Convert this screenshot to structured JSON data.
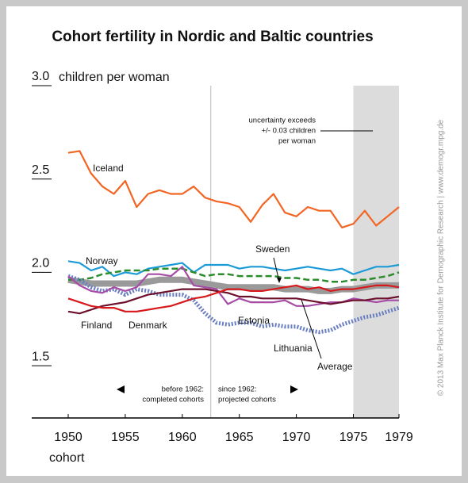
{
  "chart_data": {
    "type": "line",
    "title": "Cohort fertility in Nordic and Baltic countries",
    "y_label": "children per woman",
    "x_label": "cohort",
    "credit": "© 2013 Max Planck Institute for Demographic Research | www.demogr.mpg.de",
    "uncertainty_note": [
      "uncertainty exceeds",
      "+/- 0.03 children",
      "per woman"
    ],
    "before_note": [
      "before 1962:",
      "completed cohorts"
    ],
    "since_note": [
      "since 1962:",
      "projected cohorts"
    ],
    "xlim": [
      1946.8,
      1979
    ],
    "ylim": [
      1.22,
      3.0
    ],
    "xticks": [
      1950,
      1955,
      1960,
      1965,
      1970,
      1975,
      1979
    ],
    "yticks": [
      {
        "value": 1.5,
        "label": "1.5"
      },
      {
        "value": 2.0,
        "label": "2.0"
      },
      {
        "value": 2.5,
        "label": "2.5"
      },
      {
        "value": 3.0,
        "label": "3.0"
      }
    ],
    "shaded_range": [
      1975,
      1979
    ],
    "divider": 1962.5,
    "x": [
      1950,
      1951,
      1952,
      1953,
      1954,
      1955,
      1956,
      1957,
      1958,
      1959,
      1960,
      1961,
      1962,
      1963,
      1964,
      1965,
      1966,
      1967,
      1968,
      1969,
      1970,
      1971,
      1972,
      1973,
      1974,
      1975,
      1976,
      1977,
      1978,
      1979
    ],
    "series": [
      {
        "name": "Average",
        "color": "#9a9a9a",
        "style": "thick",
        "values": [
          1.96,
          1.95,
          1.94,
          1.94,
          1.94,
          1.94,
          1.94,
          1.95,
          1.96,
          1.96,
          1.96,
          1.95,
          1.94,
          1.93,
          1.92,
          1.92,
          1.92,
          1.92,
          1.92,
          1.91,
          1.91,
          1.91,
          1.9,
          1.9,
          1.91,
          1.91,
          1.92,
          1.93,
          1.93,
          1.93
        ]
      },
      {
        "name": "Iceland",
        "color": "#f26522",
        "style": "solid",
        "values": [
          2.64,
          2.65,
          2.53,
          2.46,
          2.42,
          2.49,
          2.35,
          2.42,
          2.44,
          2.42,
          2.42,
          2.46,
          2.4,
          2.38,
          2.37,
          2.35,
          2.27,
          2.36,
          2.42,
          2.32,
          2.3,
          2.35,
          2.33,
          2.33,
          2.24,
          2.26,
          2.33,
          2.25,
          2.3,
          2.35
        ]
      },
      {
        "name": "Norway",
        "color": "#1a9ad6",
        "style": "solid",
        "values": [
          2.06,
          2.05,
          2.01,
          2.03,
          1.98,
          2.0,
          1.99,
          2.02,
          2.03,
          2.04,
          2.05,
          2.0,
          2.04,
          2.04,
          2.04,
          2.02,
          2.03,
          2.03,
          2.02,
          2.01,
          2.02,
          2.03,
          2.02,
          2.01,
          2.02,
          1.99,
          2.01,
          2.03,
          2.03,
          2.04
        ]
      },
      {
        "name": "Sweden",
        "color": "#2a8c2a",
        "style": "dashed",
        "values": [
          1.96,
          1.96,
          1.97,
          1.99,
          2.0,
          2.01,
          2.01,
          2.01,
          2.02,
          2.02,
          2.02,
          2.0,
          1.98,
          1.99,
          1.99,
          1.98,
          1.98,
          1.98,
          1.98,
          1.97,
          1.97,
          1.96,
          1.96,
          1.95,
          1.95,
          1.96,
          1.96,
          1.97,
          1.98,
          2.0
        ]
      },
      {
        "name": "Lithuania",
        "color": "#6a7fc0",
        "style": "dotted",
        "values": [
          1.98,
          1.96,
          1.92,
          1.9,
          1.91,
          1.88,
          1.91,
          1.9,
          1.88,
          1.88,
          1.88,
          1.85,
          1.78,
          1.73,
          1.72,
          1.73,
          1.73,
          1.71,
          1.72,
          1.71,
          1.71,
          1.69,
          1.68,
          1.69,
          1.72,
          1.74,
          1.76,
          1.77,
          1.79,
          1.81
        ]
      },
      {
        "name": "Estonia",
        "color": "#a64ca6",
        "style": "solid",
        "values": [
          1.98,
          1.93,
          1.9,
          1.89,
          1.92,
          1.9,
          1.92,
          1.99,
          1.99,
          1.98,
          2.03,
          1.93,
          1.92,
          1.91,
          1.83,
          1.86,
          1.84,
          1.84,
          1.84,
          1.85,
          1.82,
          1.82,
          1.83,
          1.84,
          1.84,
          1.86,
          1.85,
          1.84,
          1.85,
          1.85
        ]
      },
      {
        "name": "Finland",
        "color": "#6b0f2a",
        "style": "solid",
        "values": [
          1.79,
          1.78,
          1.8,
          1.82,
          1.83,
          1.84,
          1.86,
          1.88,
          1.89,
          1.9,
          1.91,
          1.91,
          1.91,
          1.9,
          1.89,
          1.87,
          1.87,
          1.86,
          1.86,
          1.86,
          1.86,
          1.85,
          1.84,
          1.83,
          1.84,
          1.85,
          1.85,
          1.86,
          1.86,
          1.87
        ]
      },
      {
        "name": "Denmark",
        "color": "#d7191c",
        "style": "solid",
        "values": [
          1.86,
          1.84,
          1.82,
          1.81,
          1.81,
          1.79,
          1.79,
          1.8,
          1.81,
          1.82,
          1.84,
          1.86,
          1.87,
          1.89,
          1.91,
          1.91,
          1.9,
          1.9,
          1.91,
          1.92,
          1.93,
          1.91,
          1.92,
          1.9,
          1.91,
          1.91,
          1.92,
          1.93,
          1.93,
          1.92
        ]
      }
    ]
  }
}
